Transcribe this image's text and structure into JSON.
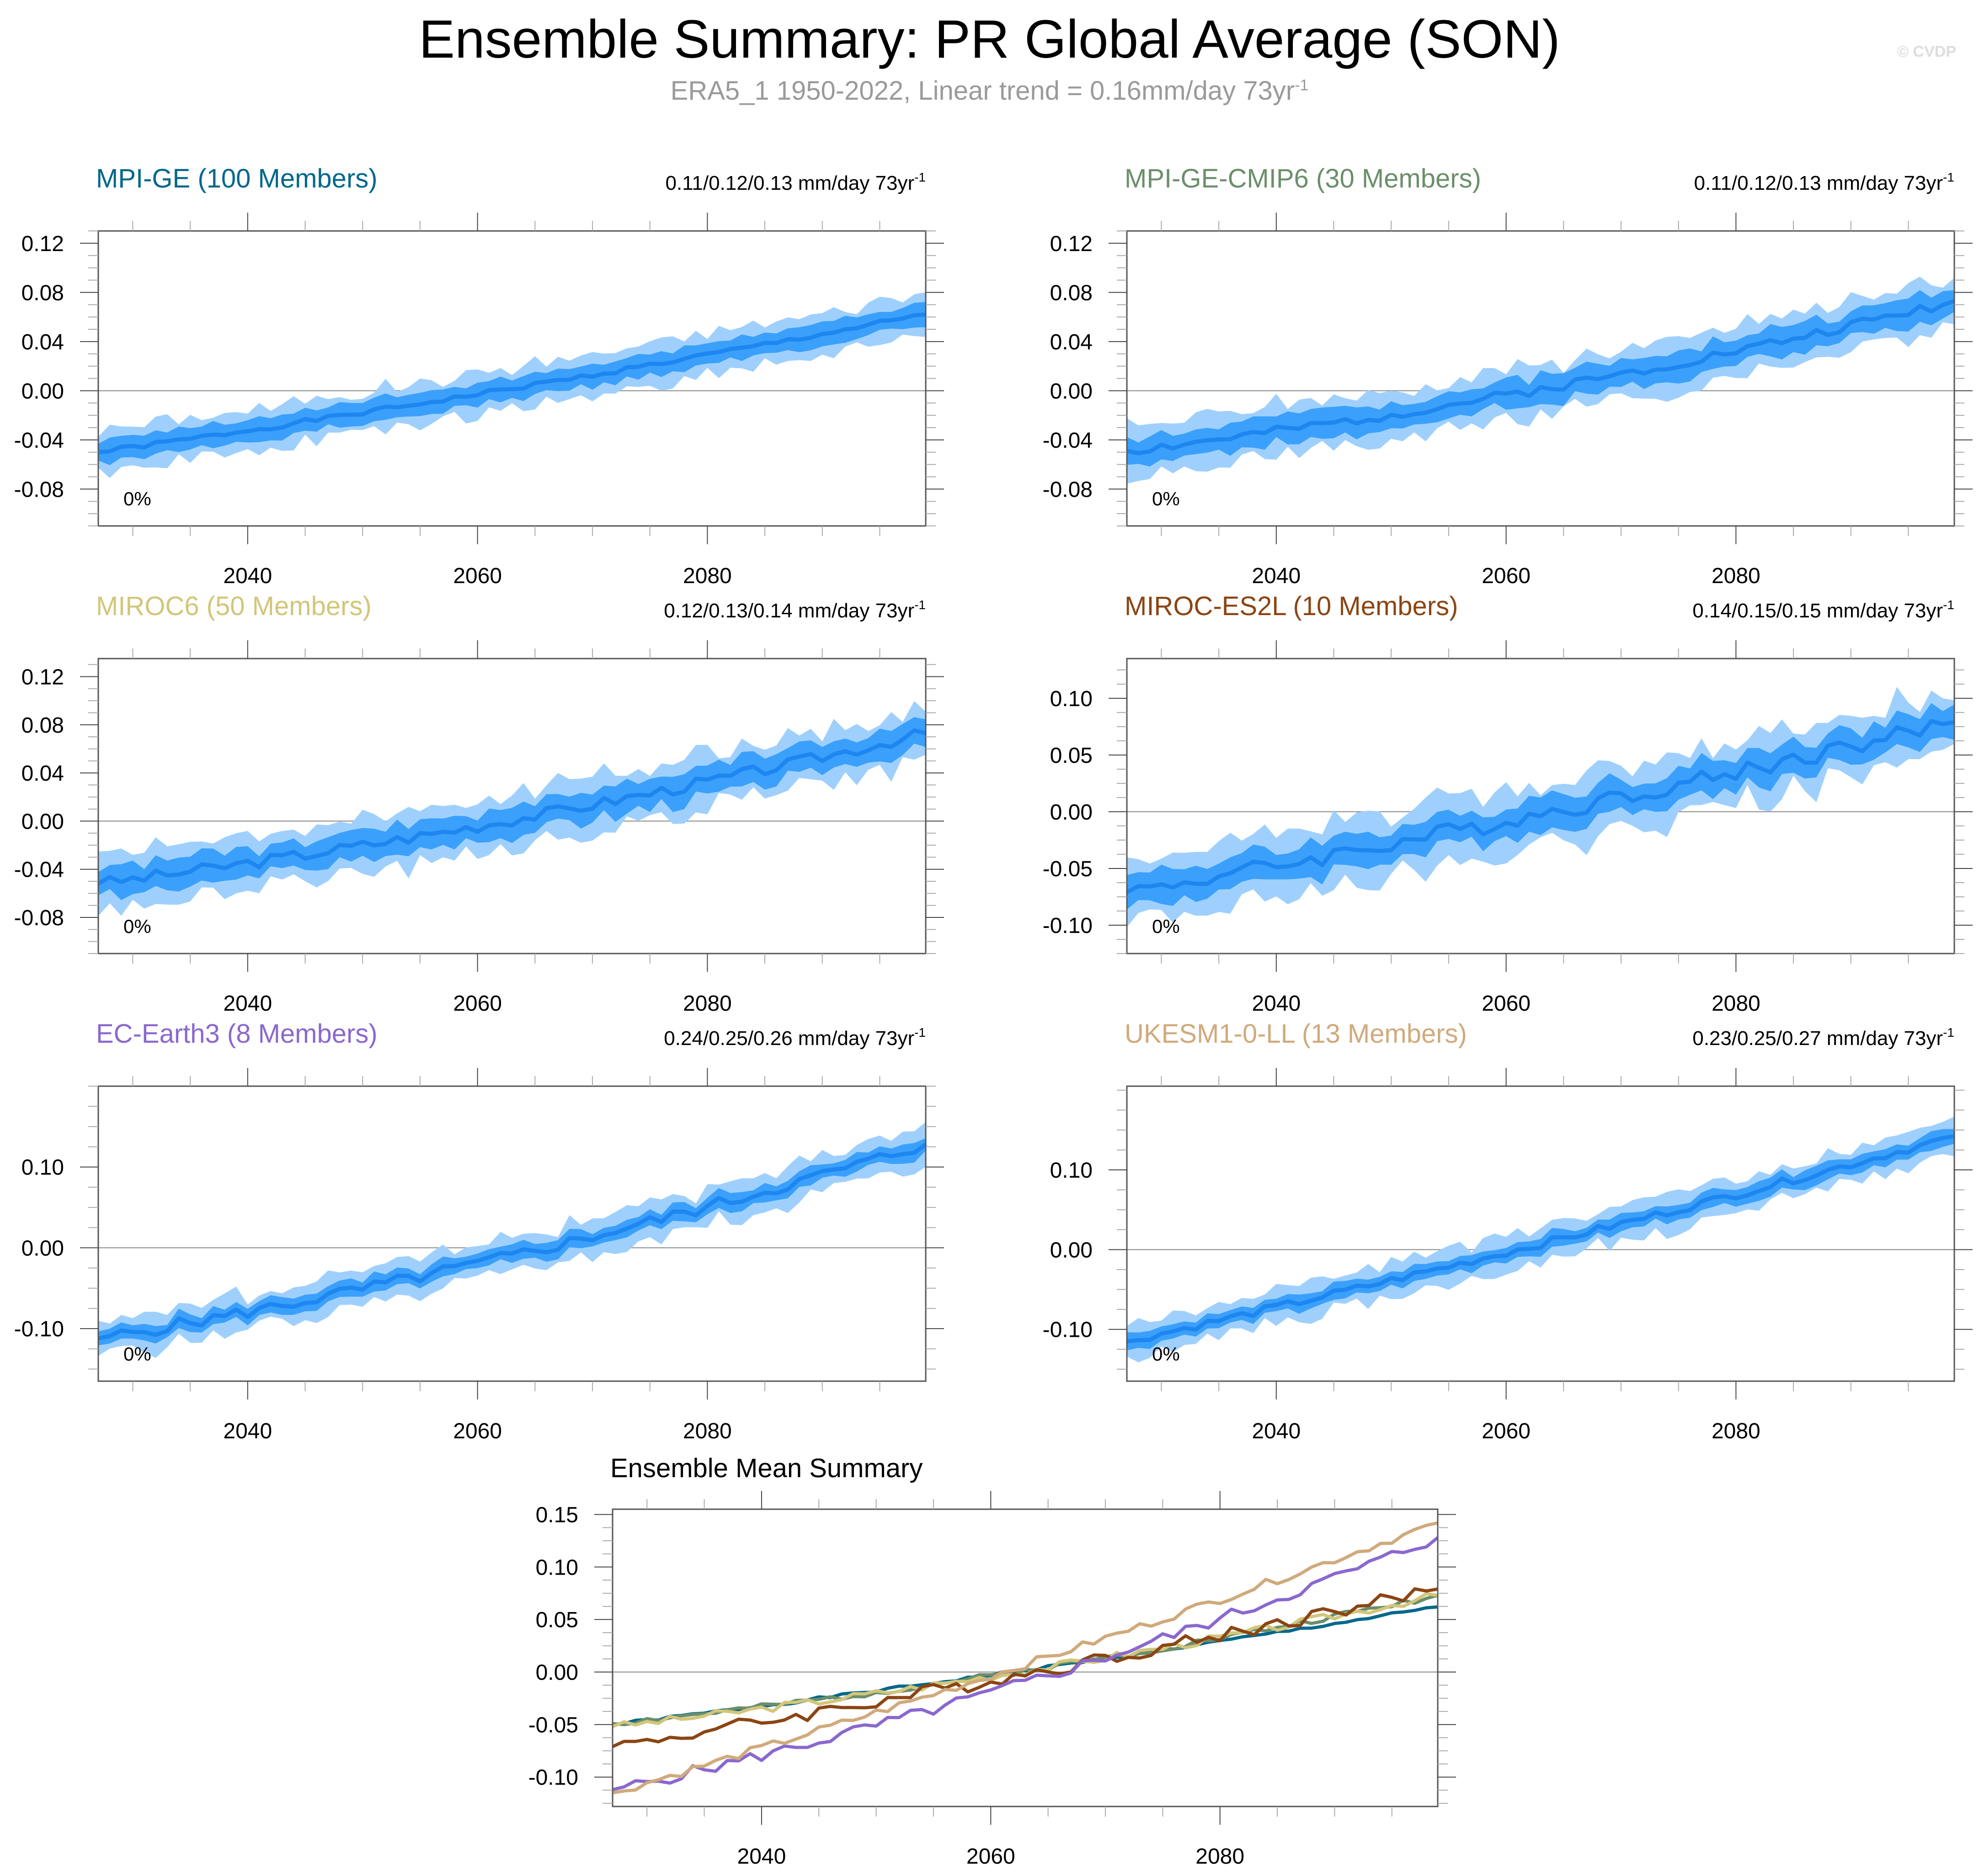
{
  "header": {
    "title": "Ensemble Summary: PR Global Average (SON)",
    "subtitle": "ERA5_1 1950-2022, Linear trend = 0.16mm/day 73yr",
    "subtitle_sup": "-1",
    "watermark": "© CVDP"
  },
  "colors": {
    "band_outer": "#9fd0fd",
    "band_inner": "#3aa0fb",
    "mean_line": "#1e86f0",
    "zero_line": "#888888",
    "axis": "#555555"
  },
  "chart_data": [
    {
      "type": "area",
      "title": "MPI-GE (100 Members)",
      "title_color": "#00678a",
      "trend_label": "0.11/0.12/0.13 mm/day 73yr",
      "trend_sup": "-1",
      "annotation": "0%",
      "xlim": [
        2027,
        2099
      ],
      "ylim": [
        -0.11,
        0.13
      ],
      "x_ticks": [
        2040,
        2060,
        2080
      ],
      "y_ticks": [
        -0.08,
        -0.04,
        0.0,
        0.04,
        0.08,
        0.12
      ],
      "y_tick_labels": [
        "-0.08",
        "-0.04",
        "0.00",
        "0.04",
        "0.08",
        "0.12"
      ],
      "mean_start": -0.05,
      "mean_end": 0.062,
      "inner_halfwidth": 0.009,
      "outer_halfwidth": 0.017,
      "noise": 0.002,
      "curvature": 0.15,
      "seed": 1
    },
    {
      "type": "area",
      "title": "MPI-GE-CMIP6 (30 Members)",
      "title_color": "#6b8f6b",
      "trend_label": "0.11/0.12/0.13 mm/day 73yr",
      "trend_sup": "-1",
      "annotation": "0%",
      "xlim": [
        2027,
        2099
      ],
      "ylim": [
        -0.11,
        0.13
      ],
      "x_ticks": [
        2040,
        2060,
        2080
      ],
      "y_ticks": [
        -0.08,
        -0.04,
        0.0,
        0.04,
        0.08,
        0.12
      ],
      "y_tick_labels": [
        "-0.08",
        "-0.04",
        "0.00",
        "0.04",
        "0.08",
        "0.12"
      ],
      "mean_start": -0.049,
      "mean_end": 0.073,
      "inner_halfwidth": 0.011,
      "outer_halfwidth": 0.02,
      "noise": 0.004,
      "curvature": 0.35,
      "seed": 2
    },
    {
      "type": "area",
      "title": "MIROC6 (50 Members)",
      "title_color": "#d2c67a",
      "trend_label": "0.12/0.13/0.14 mm/day 73yr",
      "trend_sup": "-1",
      "annotation": "0%",
      "xlim": [
        2027,
        2099
      ],
      "ylim": [
        -0.11,
        0.135
      ],
      "x_ticks": [
        2040,
        2060,
        2080
      ],
      "y_ticks": [
        -0.08,
        -0.04,
        0.0,
        0.04,
        0.08,
        0.12
      ],
      "y_tick_labels": [
        "-0.08",
        "-0.04",
        "0.00",
        "0.04",
        "0.08",
        "0.12"
      ],
      "mean_start": -0.052,
      "mean_end": 0.073,
      "inner_halfwidth": 0.012,
      "outer_halfwidth": 0.022,
      "noise": 0.005,
      "curvature": 0.3,
      "seed": 3
    },
    {
      "type": "area",
      "title": "MIROC-ES2L (10 Members)",
      "title_color": "#8b4513",
      "trend_label": "0.14/0.15/0.15 mm/day 73yr",
      "trend_sup": "-1",
      "annotation": "0%",
      "xlim": [
        2027,
        2099
      ],
      "ylim": [
        -0.125,
        0.135
      ],
      "x_ticks": [
        2040,
        2060,
        2080
      ],
      "y_ticks": [
        -0.1,
        -0.05,
        0.0,
        0.05,
        0.1
      ],
      "y_tick_labels": [
        "-0.10",
        "-0.05",
        "0.00",
        "0.05",
        "0.10"
      ],
      "mean_start": -0.071,
      "mean_end": 0.079,
      "inner_halfwidth": 0.014,
      "outer_halfwidth": 0.028,
      "noise": 0.008,
      "curvature": 0.15,
      "seed": 4
    },
    {
      "type": "area",
      "title": "EC-Earth3 (8 Members)",
      "title_color": "#8a68cf",
      "trend_label": "0.24/0.25/0.26 mm/day 73yr",
      "trend_sup": "-1",
      "annotation": "0%",
      "xlim": [
        2027,
        2099
      ],
      "ylim": [
        -0.165,
        0.2
      ],
      "x_ticks": [
        2040,
        2060,
        2080
      ],
      "y_ticks": [
        -0.1,
        0.0,
        0.1
      ],
      "y_tick_labels": [
        "-0.10",
        "0.00",
        "0.10"
      ],
      "mean_start": -0.112,
      "mean_end": 0.128,
      "inner_halfwidth": 0.01,
      "outer_halfwidth": 0.022,
      "noise": 0.008,
      "curvature": 0.3,
      "seed": 5
    },
    {
      "type": "area",
      "title": "UKESM1-0-LL (13 Members)",
      "title_color": "#d0aa7c",
      "trend_label": "0.23/0.25/0.27 mm/day 73yr",
      "trend_sup": "-1",
      "annotation": "0%",
      "xlim": [
        2027,
        2099
      ],
      "ylim": [
        -0.165,
        0.205
      ],
      "x_ticks": [
        2040,
        2060,
        2080
      ],
      "y_ticks": [
        -0.1,
        0.0,
        0.1
      ],
      "y_tick_labels": [
        "-0.10",
        "0.00",
        "0.10"
      ],
      "mean_start": -0.115,
      "mean_end": 0.142,
      "inner_halfwidth": 0.01,
      "outer_halfwidth": 0.022,
      "noise": 0.005,
      "curvature": 0.1,
      "seed": 6
    },
    {
      "type": "line",
      "title": "Ensemble Mean Summary",
      "xlim": [
        2027,
        2099
      ],
      "ylim": [
        -0.128,
        0.155
      ],
      "x_ticks": [
        2040,
        2060,
        2080
      ],
      "y_ticks": [
        -0.1,
        -0.05,
        0.0,
        0.05,
        0.1,
        0.15
      ],
      "y_tick_labels": [
        "-0.10",
        "-0.05",
        "0.00",
        "0.05",
        "0.10",
        "0.15"
      ],
      "series": [
        {
          "name": "MPI-GE",
          "color": "#00678a",
          "start": -0.05,
          "end": 0.062,
          "noise": 0.0015,
          "curvature": 0.15,
          "seed": 1
        },
        {
          "name": "MPI-GE-CMIP6",
          "color": "#6b8f6b",
          "start": -0.049,
          "end": 0.073,
          "noise": 0.003,
          "curvature": 0.35,
          "seed": 2
        },
        {
          "name": "MIROC6",
          "color": "#d2c67a",
          "start": -0.052,
          "end": 0.073,
          "noise": 0.004,
          "curvature": 0.3,
          "seed": 3
        },
        {
          "name": "MIROC-ES2L",
          "color": "#8b4513",
          "start": -0.071,
          "end": 0.079,
          "noise": 0.007,
          "curvature": 0.15,
          "seed": 4
        },
        {
          "name": "EC-Earth3",
          "color": "#8a68cf",
          "start": -0.112,
          "end": 0.128,
          "noise": 0.006,
          "curvature": 0.3,
          "seed": 5
        },
        {
          "name": "UKESM1-0-LL",
          "color": "#d0aa7c",
          "start": -0.115,
          "end": 0.142,
          "noise": 0.004,
          "curvature": 0.1,
          "seed": 6
        }
      ]
    }
  ]
}
